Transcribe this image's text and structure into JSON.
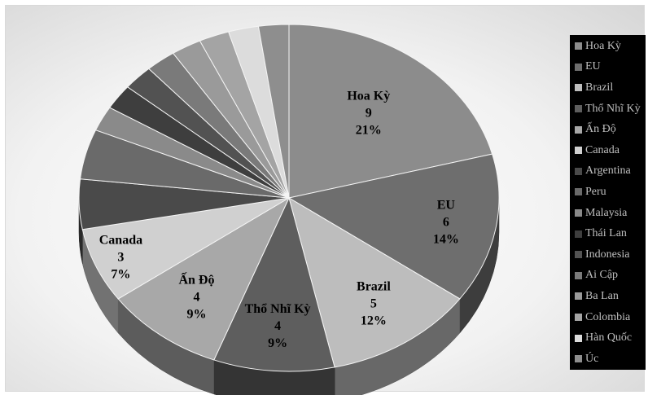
{
  "chart_data": {
    "type": "pie",
    "style": "3d",
    "title": "",
    "legend_position": "right",
    "categories": [
      "Hoa Kỳ",
      "EU",
      "Brazil",
      "Thổ Nhĩ Kỳ",
      "Ấn Độ",
      "Canada",
      "Argentina",
      "Peru",
      "Malaysia",
      "Thái Lan",
      "Indonesia",
      "Ai Cập",
      "Ba Lan",
      "Colombia",
      "Hàn Quốc",
      "Úc"
    ],
    "values": [
      9,
      6,
      5,
      4,
      4,
      3,
      2,
      2,
      1,
      1,
      1,
      1,
      1,
      1,
      1,
      1
    ],
    "colors": [
      "#8c8c8c",
      "#6e6e6e",
      "#bdbdbd",
      "#5e5e5e",
      "#a8a8a8",
      "#d0d0d0",
      "#4a4a4a",
      "#6a6a6a",
      "#8a8a8a",
      "#3e3e3e",
      "#525252",
      "#7a7a7a",
      "#9a9a9a",
      "#a4a4a4",
      "#dcdcdc",
      "#8e8e8e"
    ],
    "data_labels": [
      {
        "category": "Hoa Kỳ",
        "value": "9",
        "percent": "21%"
      },
      {
        "category": "EU",
        "value": "6",
        "percent": "14%"
      },
      {
        "category": "Brazil",
        "value": "5",
        "percent": "12%"
      },
      {
        "category": "Thổ Nhĩ Kỳ",
        "value": "4",
        "percent": "9%"
      },
      {
        "category": "Ấn Độ",
        "value": "4",
        "percent": "9%"
      },
      {
        "category": "Canada",
        "value": "3",
        "percent": "7%"
      }
    ]
  }
}
